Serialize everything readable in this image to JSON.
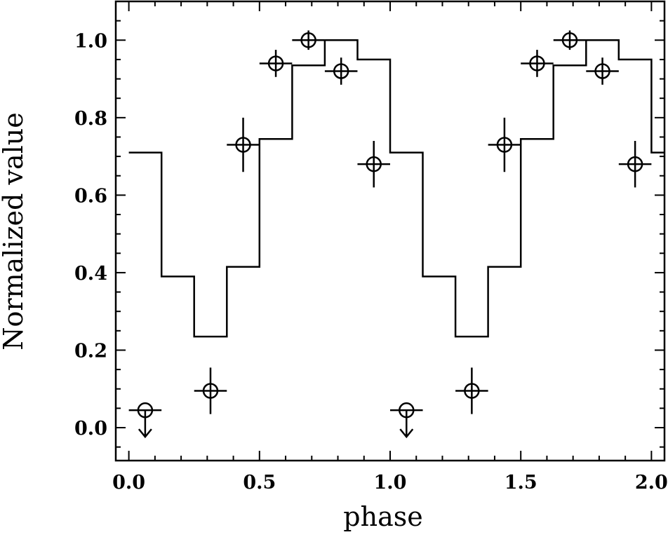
{
  "chart_data": {
    "type": "scatter",
    "xlabel": "phase",
    "ylabel": "Normalized value",
    "xlim": [
      -0.05,
      2.05
    ],
    "ylim": [
      -0.085,
      1.1
    ],
    "x_ticks": [
      0.0,
      0.5,
      1.0,
      1.5,
      2.0
    ],
    "x_tick_labels": [
      "0.0",
      "0.5",
      "1.0",
      "1.5",
      "2.0"
    ],
    "y_ticks": [
      0.0,
      0.2,
      0.4,
      0.6,
      0.8,
      1.0
    ],
    "y_tick_labels": [
      "0.0",
      "0.2",
      "0.4",
      "0.6",
      "0.8",
      "1.0"
    ],
    "grid": false,
    "legend": "none",
    "step_model": {
      "bin_width": 0.125,
      "levels": [
        0.71,
        0.39,
        0.235,
        0.415,
        0.745,
        0.935,
        1.0,
        0.95,
        0.71,
        0.39,
        0.235,
        0.415,
        0.745,
        0.935,
        1.0,
        0.95,
        0.71,
        0.39
      ]
    },
    "points": [
      {
        "x": 0.0625,
        "y": 0.045,
        "xerr": 0.0625,
        "yerr": 0.0,
        "upper_limit": true
      },
      {
        "x": 0.3125,
        "y": 0.095,
        "xerr": 0.0625,
        "yerr": 0.06,
        "upper_limit": false
      },
      {
        "x": 0.4375,
        "y": 0.73,
        "xerr": 0.0625,
        "yerr": 0.07,
        "upper_limit": false
      },
      {
        "x": 0.5625,
        "y": 0.94,
        "xerr": 0.0625,
        "yerr": 0.035,
        "upper_limit": false
      },
      {
        "x": 0.6875,
        "y": 1.0,
        "xerr": 0.0625,
        "yerr": 0.025,
        "upper_limit": false
      },
      {
        "x": 0.8125,
        "y": 0.92,
        "xerr": 0.0625,
        "yerr": 0.035,
        "upper_limit": false
      },
      {
        "x": 0.9375,
        "y": 0.68,
        "xerr": 0.0625,
        "yerr": 0.06,
        "upper_limit": false
      },
      {
        "x": 1.0625,
        "y": 0.045,
        "xerr": 0.0625,
        "yerr": 0.0,
        "upper_limit": true
      },
      {
        "x": 1.3125,
        "y": 0.095,
        "xerr": 0.0625,
        "yerr": 0.06,
        "upper_limit": false
      },
      {
        "x": 1.4375,
        "y": 0.73,
        "xerr": 0.0625,
        "yerr": 0.07,
        "upper_limit": false
      },
      {
        "x": 1.5625,
        "y": 0.94,
        "xerr": 0.0625,
        "yerr": 0.035,
        "upper_limit": false
      },
      {
        "x": 1.6875,
        "y": 1.0,
        "xerr": 0.0625,
        "yerr": 0.025,
        "upper_limit": false
      },
      {
        "x": 1.8125,
        "y": 0.92,
        "xerr": 0.0625,
        "yerr": 0.035,
        "upper_limit": false
      },
      {
        "x": 1.9375,
        "y": 0.68,
        "xerr": 0.0625,
        "yerr": 0.06,
        "upper_limit": false
      }
    ],
    "colors": {
      "line": "#000000",
      "background": "#ffffff"
    }
  }
}
